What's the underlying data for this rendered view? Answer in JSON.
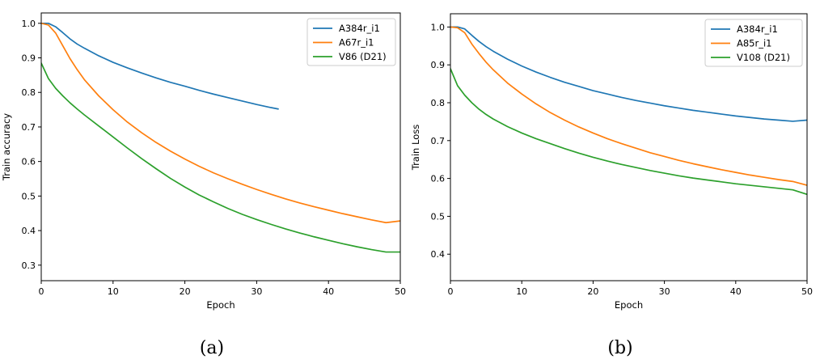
{
  "chart_data": [
    {
      "type": "line",
      "caption": "(a)",
      "xlabel": "Epoch",
      "ylabel": "Train accuracy",
      "xlim": [
        0,
        50
      ],
      "ylim": [
        0.255,
        1.03
      ],
      "xticks": [
        0,
        10,
        20,
        30,
        40,
        50
      ],
      "yticks": [
        0.3,
        0.4,
        0.5,
        0.6,
        0.7,
        0.8,
        0.9,
        1.0
      ],
      "ytick_labels": [
        "0.3",
        "0.4",
        "0.5",
        "0.6",
        "0.7",
        "0.8",
        "0.9",
        "1.0"
      ],
      "grid": false,
      "legend_position": "top-right",
      "series": [
        {
          "name": "A384r_i1",
          "color": "#1f77b4",
          "x": [
            0,
            1,
            2,
            3,
            4,
            5,
            6,
            8,
            10,
            12,
            14,
            16,
            18,
            20,
            22,
            24,
            26,
            28,
            30,
            32,
            33
          ],
          "y": [
            1.0,
            1.0,
            0.99,
            0.973,
            0.955,
            0.94,
            0.928,
            0.906,
            0.887,
            0.871,
            0.856,
            0.842,
            0.829,
            0.818,
            0.806,
            0.795,
            0.785,
            0.775,
            0.765,
            0.756,
            0.752
          ]
        },
        {
          "name": "A67r_i1",
          "color": "#ff7f0e",
          "x": [
            0,
            1,
            2,
            3,
            4,
            5,
            6,
            8,
            10,
            12,
            14,
            16,
            18,
            20,
            22,
            24,
            26,
            28,
            30,
            32,
            34,
            36,
            38,
            40,
            42,
            44,
            46,
            48,
            50
          ],
          "y": [
            1.0,
            0.995,
            0.972,
            0.935,
            0.898,
            0.866,
            0.837,
            0.79,
            0.75,
            0.714,
            0.683,
            0.655,
            0.63,
            0.607,
            0.586,
            0.567,
            0.55,
            0.534,
            0.519,
            0.505,
            0.492,
            0.48,
            0.469,
            0.459,
            0.449,
            0.44,
            0.431,
            0.423,
            0.428
          ]
        },
        {
          "name": "V86 (D21)",
          "color": "#2ca02c",
          "x": [
            0,
            1,
            2,
            3,
            4,
            5,
            6,
            8,
            10,
            12,
            14,
            16,
            18,
            20,
            22,
            24,
            26,
            28,
            30,
            32,
            34,
            36,
            38,
            40,
            42,
            44,
            46,
            48,
            50
          ],
          "y": [
            0.885,
            0.84,
            0.812,
            0.79,
            0.77,
            0.752,
            0.735,
            0.703,
            0.671,
            0.639,
            0.608,
            0.579,
            0.551,
            0.526,
            0.503,
            0.483,
            0.464,
            0.447,
            0.432,
            0.418,
            0.405,
            0.393,
            0.382,
            0.372,
            0.362,
            0.353,
            0.345,
            0.338,
            0.338
          ]
        }
      ]
    },
    {
      "type": "line",
      "caption": "(b)",
      "xlabel": "Epoch",
      "ylabel": "Train Loss",
      "xlim": [
        0,
        50
      ],
      "ylim": [
        0.33,
        1.035
      ],
      "xticks": [
        0,
        10,
        20,
        30,
        40,
        50
      ],
      "yticks": [
        0.4,
        0.5,
        0.6,
        0.7,
        0.8,
        0.9,
        1.0
      ],
      "ytick_labels": [
        "0.4",
        "0.5",
        "0.6",
        "0.7",
        "0.8",
        "0.9",
        "1.0"
      ],
      "grid": false,
      "legend_position": "top-right",
      "series": [
        {
          "name": "A384r_i1",
          "color": "#1f77b4",
          "x": [
            0,
            1,
            2,
            3,
            4,
            5,
            6,
            8,
            10,
            12,
            14,
            16,
            18,
            20,
            22,
            24,
            26,
            28,
            30,
            32,
            34,
            36,
            38,
            40,
            42,
            44,
            46,
            48,
            50
          ],
          "y": [
            1.0,
            1.0,
            0.995,
            0.978,
            0.962,
            0.948,
            0.936,
            0.915,
            0.897,
            0.881,
            0.867,
            0.854,
            0.843,
            0.832,
            0.823,
            0.814,
            0.806,
            0.799,
            0.792,
            0.786,
            0.78,
            0.775,
            0.77,
            0.765,
            0.761,
            0.757,
            0.754,
            0.751,
            0.754
          ]
        },
        {
          "name": "A85r_i1",
          "color": "#ff7f0e",
          "x": [
            0,
            1,
            2,
            3,
            4,
            5,
            6,
            8,
            10,
            12,
            14,
            16,
            18,
            20,
            22,
            24,
            26,
            28,
            30,
            32,
            34,
            36,
            38,
            40,
            42,
            44,
            46,
            48,
            50
          ],
          "y": [
            1.0,
            0.998,
            0.985,
            0.955,
            0.93,
            0.907,
            0.887,
            0.852,
            0.823,
            0.797,
            0.774,
            0.754,
            0.736,
            0.72,
            0.705,
            0.692,
            0.68,
            0.668,
            0.658,
            0.648,
            0.639,
            0.631,
            0.623,
            0.616,
            0.609,
            0.603,
            0.597,
            0.592,
            0.582
          ]
        },
        {
          "name": "V108 (D21)",
          "color": "#2ca02c",
          "x": [
            0,
            1,
            2,
            3,
            4,
            5,
            6,
            8,
            10,
            12,
            14,
            16,
            18,
            20,
            22,
            24,
            26,
            28,
            30,
            32,
            34,
            36,
            38,
            40,
            42,
            44,
            46,
            48,
            50
          ],
          "y": [
            0.89,
            0.845,
            0.82,
            0.8,
            0.783,
            0.769,
            0.757,
            0.737,
            0.72,
            0.705,
            0.692,
            0.679,
            0.667,
            0.656,
            0.646,
            0.637,
            0.629,
            0.621,
            0.614,
            0.607,
            0.601,
            0.596,
            0.591,
            0.586,
            0.582,
            0.578,
            0.574,
            0.57,
            0.558
          ]
        }
      ]
    }
  ]
}
